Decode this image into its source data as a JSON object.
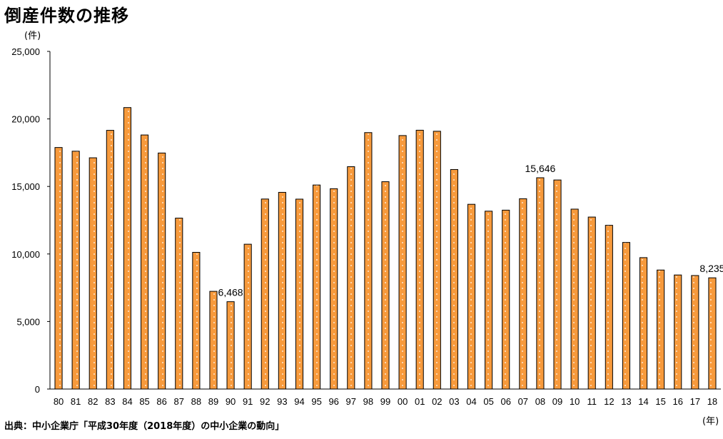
{
  "title": "倒産件数の推移",
  "source": "出典：中小企業庁「平成30年度（2018年度）の中小企業の動向」",
  "chart_data": {
    "type": "bar",
    "title": "倒産件数の推移",
    "ylabel_unit": "(件)",
    "xlabel_unit": "(年)",
    "ylim": [
      0,
      25000
    ],
    "yticks": [
      0,
      5000,
      10000,
      15000,
      20000,
      25000
    ],
    "ytick_labels": [
      "0",
      "5,000",
      "10,000",
      "15,000",
      "20,000",
      "25,000"
    ],
    "categories": [
      "80",
      "81",
      "82",
      "83",
      "84",
      "85",
      "86",
      "87",
      "88",
      "89",
      "90",
      "91",
      "92",
      "93",
      "94",
      "95",
      "96",
      "97",
      "98",
      "99",
      "00",
      "01",
      "02",
      "03",
      "04",
      "05",
      "06",
      "07",
      "08",
      "09",
      "10",
      "11",
      "12",
      "13",
      "14",
      "15",
      "16",
      "17",
      "18"
    ],
    "values": [
      17884,
      17610,
      17122,
      19155,
      20841,
      18812,
      17476,
      12655,
      10122,
      7234,
      6468,
      10723,
      14069,
      14564,
      14061,
      15108,
      14834,
      16464,
      18988,
      15352,
      18769,
      19164,
      19087,
      16255,
      13679,
      13170,
      13245,
      14091,
      15646,
      15480,
      13321,
      12734,
      12124,
      10855,
      9731,
      8812,
      8446,
      8405,
      8235
    ],
    "annotations": [
      {
        "category": "90",
        "label": "6,468"
      },
      {
        "category": "08",
        "label": "15,646"
      },
      {
        "category": "18",
        "label": "8,235"
      }
    ],
    "colors": {
      "bar_fill": "#F79A3C",
      "bar_stroke": "#000000",
      "dots": "#FFFFFF",
      "axis": "#000000"
    },
    "grid": false
  }
}
